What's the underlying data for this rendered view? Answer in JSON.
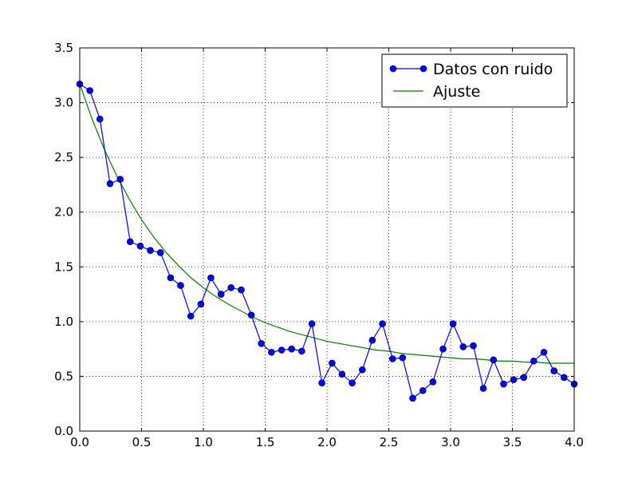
{
  "chart_data": {
    "type": "line",
    "title": "",
    "xlabel": "",
    "ylabel": "",
    "xlim": [
      0.0,
      4.0
    ],
    "ylim": [
      0.0,
      3.5
    ],
    "xticks": [
      "0.0",
      "0.5",
      "1.0",
      "1.5",
      "2.0",
      "2.5",
      "3.0",
      "3.5",
      "4.0"
    ],
    "yticks": [
      "0.0",
      "0.5",
      "1.0",
      "1.5",
      "2.0",
      "2.5",
      "3.0",
      "3.5"
    ],
    "grid": true,
    "legend_position": "top-right",
    "series": [
      {
        "name": "Datos con ruido",
        "style": "line-with-markers",
        "color": "#0000ff",
        "marker_color": "#0000ff",
        "x": [
          0.0,
          0.082,
          0.163,
          0.245,
          0.327,
          0.408,
          0.49,
          0.571,
          0.653,
          0.735,
          0.816,
          0.898,
          0.98,
          1.061,
          1.143,
          1.224,
          1.306,
          1.388,
          1.469,
          1.551,
          1.633,
          1.714,
          1.796,
          1.878,
          1.959,
          2.041,
          2.122,
          2.204,
          2.286,
          2.367,
          2.449,
          2.531,
          2.612,
          2.694,
          2.776,
          2.857,
          2.939,
          3.02,
          3.102,
          3.184,
          3.265,
          3.347,
          3.429,
          3.51,
          3.592,
          3.673,
          3.755,
          3.837,
          3.918,
          4.0
        ],
        "y": [
          3.17,
          3.11,
          2.85,
          2.26,
          2.3,
          1.73,
          1.69,
          1.65,
          1.63,
          1.4,
          1.33,
          1.05,
          1.16,
          1.4,
          1.25,
          1.31,
          1.29,
          1.06,
          0.8,
          0.72,
          0.74,
          0.75,
          0.73,
          0.98,
          0.44,
          0.62,
          0.52,
          0.44,
          0.56,
          0.83,
          0.98,
          0.66,
          0.67,
          0.3,
          0.37,
          0.45,
          0.75,
          0.98,
          0.77,
          0.78,
          0.39,
          0.65,
          0.43,
          0.47,
          0.49,
          0.64,
          0.72,
          0.55,
          0.49,
          0.43
        ]
      },
      {
        "name": "Ajuste",
        "style": "line",
        "color": "#008000",
        "x": [
          0.0,
          0.1,
          0.2,
          0.3,
          0.4,
          0.5,
          0.6,
          0.7,
          0.8,
          0.9,
          1.0,
          1.1,
          1.2,
          1.3,
          1.4,
          1.5,
          1.6,
          1.7,
          1.8,
          1.9,
          2.0,
          2.1,
          2.2,
          2.3,
          2.4,
          2.5,
          2.6,
          2.7,
          2.8,
          2.9,
          3.0,
          3.1,
          3.2,
          3.3,
          3.4,
          3.5,
          3.6,
          3.7,
          3.8,
          3.9,
          4.0
        ],
        "y": [
          3.17,
          2.85,
          2.57,
          2.33,
          2.12,
          1.93,
          1.77,
          1.63,
          1.51,
          1.4,
          1.31,
          1.23,
          1.16,
          1.1,
          1.04,
          0.99,
          0.95,
          0.91,
          0.88,
          0.85,
          0.82,
          0.8,
          0.78,
          0.76,
          0.74,
          0.73,
          0.71,
          0.7,
          0.69,
          0.68,
          0.67,
          0.66,
          0.66,
          0.65,
          0.64,
          0.64,
          0.63,
          0.63,
          0.62,
          0.62,
          0.62
        ]
      }
    ]
  }
}
